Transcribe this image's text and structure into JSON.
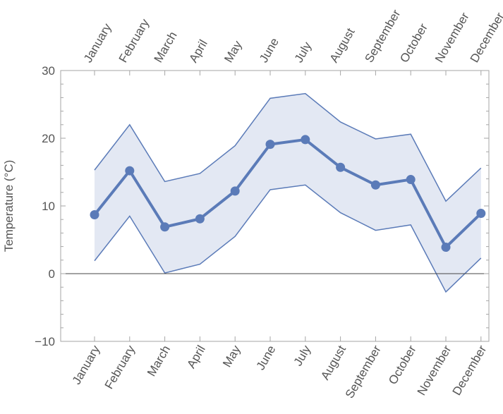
{
  "chart_data": {
    "type": "line",
    "title": "",
    "xlabel": "",
    "ylabel": "Temperature (°C)",
    "categories": [
      "January",
      "February",
      "March",
      "April",
      "May",
      "June",
      "July",
      "August",
      "September",
      "October",
      "November",
      "December"
    ],
    "series": [
      {
        "role": "mean",
        "values": [
          8.7,
          15.2,
          6.9,
          8.1,
          12.2,
          19.1,
          19.8,
          15.7,
          13.1,
          13.9,
          3.9,
          8.9
        ]
      },
      {
        "role": "upper",
        "values": [
          15.3,
          22.0,
          13.6,
          14.8,
          18.9,
          25.9,
          26.6,
          22.4,
          19.9,
          20.6,
          10.7,
          15.6
        ]
      },
      {
        "role": "lower",
        "values": [
          1.9,
          8.5,
          0.1,
          1.4,
          5.5,
          12.4,
          13.1,
          9.0,
          6.4,
          7.2,
          -2.7,
          2.3
        ]
      }
    ],
    "ylim": [
      -10,
      30
    ],
    "yticks": [
      -10,
      0,
      10,
      20,
      30
    ],
    "grid": false,
    "legend": "none",
    "colors": {
      "line": "#5b7bb8",
      "band_fill": "#e3e8f3",
      "band_edge": "#5b7bb8",
      "zero_line": "#444444"
    }
  }
}
